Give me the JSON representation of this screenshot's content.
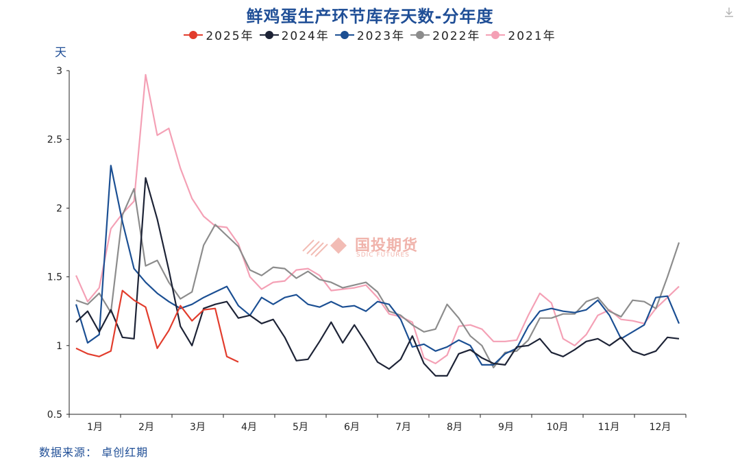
{
  "header": {
    "title": "鲜鸡蛋生产环节库存天数-分年度"
  },
  "y_unit": "天",
  "source": "数据来源： 卓创红期",
  "watermark": {
    "name": "国投期货",
    "sub": "SDIC FUTURES"
  },
  "icons": {
    "download": "download-icon",
    "watermark": "sdic-logo-icon"
  },
  "chart_data": {
    "type": "line",
    "title": "鲜鸡蛋生产环节库存天数-分年度",
    "ylabel": "天",
    "ylim": [
      0.5,
      3
    ],
    "yticks": [
      0.5,
      1,
      1.5,
      2,
      2.5,
      3
    ],
    "ytick_labels": [
      "0.5",
      "1",
      "1.5",
      "2",
      "2.5",
      "3"
    ],
    "xlim": [
      1,
      53
    ],
    "month_labels": [
      "1月",
      "2月",
      "3月",
      "4月",
      "5月",
      "6月",
      "7月",
      "8月",
      "9月",
      "10月",
      "11月",
      "12月"
    ],
    "legend_position": "top",
    "grid": false,
    "series": [
      {
        "name": "2021年",
        "color": "#f4a0b5",
        "values": [
          1.51,
          1.32,
          1.42,
          1.85,
          1.96,
          2.05,
          2.97,
          2.53,
          2.58,
          2.29,
          2.07,
          1.94,
          1.87,
          1.86,
          1.74,
          1.5,
          1.41,
          1.46,
          1.47,
          1.55,
          1.56,
          1.51,
          1.4,
          1.41,
          1.42,
          1.44,
          1.35,
          1.23,
          1.21,
          1.17,
          0.91,
          0.87,
          0.93,
          1.14,
          1.15,
          1.12,
          1.03,
          1.03,
          1.04,
          1.22,
          1.38,
          1.31,
          1.05,
          1.0,
          1.08,
          1.22,
          1.26,
          1.19,
          1.18,
          1.16,
          1.27,
          1.35,
          1.43
        ]
      },
      {
        "name": "2022年",
        "color": "#8c8c8c",
        "values": [
          1.33,
          1.3,
          1.38,
          1.24,
          1.95,
          2.14,
          1.58,
          1.62,
          1.46,
          1.34,
          1.39,
          1.73,
          1.88,
          1.8,
          1.72,
          1.55,
          1.51,
          1.57,
          1.56,
          1.49,
          1.54,
          1.48,
          1.46,
          1.42,
          1.44,
          1.46,
          1.39,
          1.25,
          1.22,
          1.15,
          1.1,
          1.12,
          1.3,
          1.2,
          1.07,
          1.0,
          0.84,
          0.95,
          0.96,
          1.04,
          1.2,
          1.2,
          1.23,
          1.23,
          1.32,
          1.35,
          1.25,
          1.21,
          1.33,
          1.32,
          1.27,
          1.5,
          1.75
        ]
      },
      {
        "name": "2023年",
        "color": "#1b4f93",
        "values": [
          1.3,
          1.02,
          1.08,
          2.31,
          1.9,
          1.56,
          1.46,
          1.38,
          1.32,
          1.27,
          1.3,
          1.35,
          1.39,
          1.43,
          1.29,
          1.22,
          1.35,
          1.3,
          1.35,
          1.37,
          1.3,
          1.28,
          1.32,
          1.28,
          1.29,
          1.25,
          1.32,
          1.3,
          1.19,
          0.99,
          1.01,
          0.96,
          0.99,
          1.04,
          1.0,
          0.86,
          0.86,
          0.94,
          0.98,
          1.14,
          1.25,
          1.27,
          1.25,
          1.24,
          1.26,
          1.33,
          1.22,
          1.05,
          1.1,
          1.15,
          1.35,
          1.36,
          1.16
        ]
      },
      {
        "name": "2024年",
        "color": "#1d2336",
        "values": [
          1.17,
          1.25,
          1.1,
          1.26,
          1.06,
          1.05,
          2.22,
          1.92,
          1.55,
          1.14,
          1.0,
          1.27,
          1.3,
          1.32,
          1.2,
          1.22,
          1.16,
          1.19,
          1.06,
          0.89,
          0.9,
          1.03,
          1.17,
          1.02,
          1.15,
          1.02,
          0.88,
          0.83,
          0.9,
          1.07,
          0.87,
          0.78,
          0.78,
          0.94,
          0.97,
          0.91,
          0.87,
          0.86,
          0.99,
          1.0,
          1.05,
          0.95,
          0.92,
          0.97,
          1.03,
          1.05,
          1.0,
          1.06,
          0.96,
          0.93,
          0.96,
          1.06,
          1.05
        ]
      },
      {
        "name": "2025年",
        "color": "#e23c2c",
        "values": [
          0.98,
          0.94,
          0.92,
          0.96,
          1.4,
          1.33,
          1.28,
          0.98,
          1.11,
          1.29,
          1.18,
          1.26,
          1.27,
          0.92,
          0.88
        ]
      }
    ]
  }
}
